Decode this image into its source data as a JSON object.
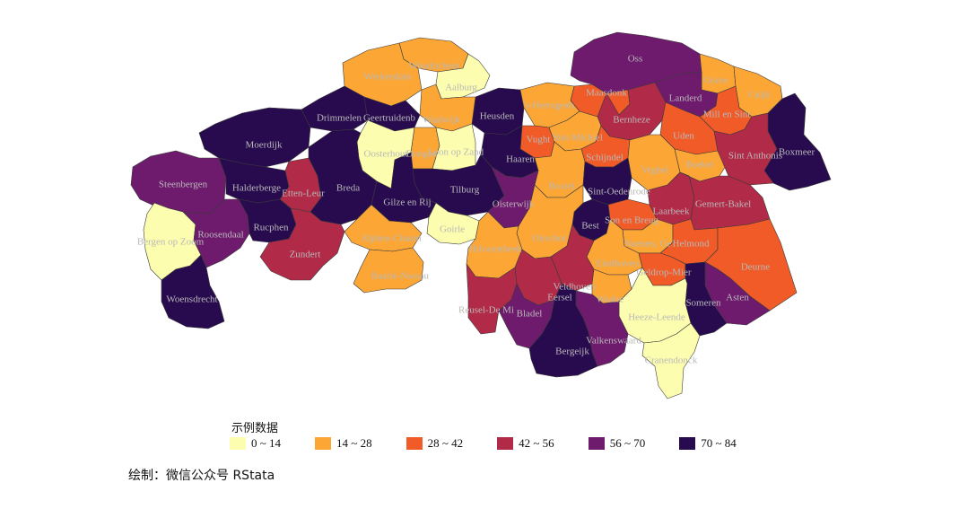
{
  "colors": {
    "0_14": "#fcfdaf",
    "14_28": "#fca636",
    "28_42": "#f05b28",
    "42_56": "#b12a47",
    "56_70": "#6e1a6d",
    "70_84": "#280b4f"
  },
  "legend": {
    "title": "示例数据",
    "items": [
      {
        "label": "0 ~ 14",
        "color": "#fcfdaf"
      },
      {
        "label": "14 ~ 28",
        "color": "#fca636"
      },
      {
        "label": "28 ~ 42",
        "color": "#f05b28"
      },
      {
        "label": "42 ~ 56",
        "color": "#b12a47"
      },
      {
        "label": "56 ~ 70",
        "color": "#6e1a6d"
      },
      {
        "label": "70 ~ 84",
        "color": "#280b4f"
      }
    ]
  },
  "caption": "绘制：微信公众号 RStata",
  "municipalities": [
    {
      "name": "Woudrichem",
      "class": "14_28"
    },
    {
      "name": "Werkendam",
      "class": "14_28"
    },
    {
      "name": "Aalburg",
      "class": "0_14"
    },
    {
      "name": "Oss",
      "class": "56_70"
    },
    {
      "name": "Grave",
      "class": "14_28"
    },
    {
      "name": "Cuijk",
      "class": "14_28"
    },
    {
      "name": "Maasdonk",
      "class": "28_42"
    },
    {
      "name": "Landerd",
      "class": "56_70"
    },
    {
      "name": "Heusden",
      "class": "70_84"
    },
    {
      "name": "'s-Hertogenb",
      "class": "14_28"
    },
    {
      "name": "Drimmelen",
      "class": "70_84"
    },
    {
      "name": "Geertruidenb",
      "class": "70_84"
    },
    {
      "name": "Waalwijk",
      "class": "14_28"
    },
    {
      "name": "Bernheze",
      "class": "42_56"
    },
    {
      "name": "Mill en Sint",
      "class": "28_42"
    },
    {
      "name": "Uden",
      "class": "28_42"
    },
    {
      "name": "Boxmeer",
      "class": "70_84"
    },
    {
      "name": "Moerdijk",
      "class": "70_84"
    },
    {
      "name": "Oosterhout",
      "class": "0_14"
    },
    {
      "name": "Dongen",
      "class": "14_28"
    },
    {
      "name": "Loon op Zand",
      "class": "0_14"
    },
    {
      "name": "Vught",
      "class": "28_42"
    },
    {
      "name": "Sint-Michiel",
      "class": "14_28"
    },
    {
      "name": "Schijndel",
      "class": "28_42"
    },
    {
      "name": "Veghel",
      "class": "14_28"
    },
    {
      "name": "Boekel",
      "class": "14_28"
    },
    {
      "name": "Sint Anthonis",
      "class": "42_56"
    },
    {
      "name": "Haaren",
      "class": "70_84"
    },
    {
      "name": "Steenbergen",
      "class": "56_70"
    },
    {
      "name": "Halderberge",
      "class": "70_84"
    },
    {
      "name": "Etten-Leur",
      "class": "42_56"
    },
    {
      "name": "Breda",
      "class": "70_84"
    },
    {
      "name": "Tilburg",
      "class": "70_84"
    },
    {
      "name": "Boxtel",
      "class": "14_28"
    },
    {
      "name": "Sint-Oedenrode",
      "class": "70_84"
    },
    {
      "name": "Gilze en Rij",
      "class": "70_84"
    },
    {
      "name": "Oisterwijk",
      "class": "56_70"
    },
    {
      "name": "Laarbeek",
      "class": "42_56"
    },
    {
      "name": "Gemert-Bakel",
      "class": "42_56"
    },
    {
      "name": "Son en Breug",
      "class": "28_42"
    },
    {
      "name": "Bergen op Zoom",
      "class": "0_14"
    },
    {
      "name": "Roosendaal",
      "class": "56_70"
    },
    {
      "name": "Rucphen",
      "class": "70_84"
    },
    {
      "name": "Alphen-Chaam",
      "class": "14_28"
    },
    {
      "name": "Goirle",
      "class": "0_14"
    },
    {
      "name": "Best",
      "class": "70_84"
    },
    {
      "name": "Oirschot",
      "class": "14_28"
    },
    {
      "name": "Nuenen, Ge",
      "class": "14_28"
    },
    {
      "name": "Helmond",
      "class": "28_42"
    },
    {
      "name": "Zundert",
      "class": "42_56"
    },
    {
      "name": "Hilvarenbeek",
      "class": "14_28"
    },
    {
      "name": "Eindhoven",
      "class": "14_28"
    },
    {
      "name": "Geldrop-Mier",
      "class": "28_42"
    },
    {
      "name": "Deurne",
      "class": "28_42"
    },
    {
      "name": "Baarle-Nassau",
      "class": "14_28"
    },
    {
      "name": "Woensdrecht",
      "class": "70_84"
    },
    {
      "name": "Veldhoven",
      "class": "42_56"
    },
    {
      "name": "Eersel",
      "class": "42_56"
    },
    {
      "name": "Waalre",
      "class": "14_28"
    },
    {
      "name": "Asten",
      "class": "56_70"
    },
    {
      "name": "Someren",
      "class": "70_84"
    },
    {
      "name": "Reusel-De Mi",
      "class": "42_56"
    },
    {
      "name": "Bladel",
      "class": "56_70"
    },
    {
      "name": "Heeze-Leende",
      "class": "0_14"
    },
    {
      "name": "Valkenswaard",
      "class": "56_70"
    },
    {
      "name": "Bergeijk",
      "class": "70_84"
    },
    {
      "name": "Cranendonck",
      "class": "0_14"
    }
  ]
}
